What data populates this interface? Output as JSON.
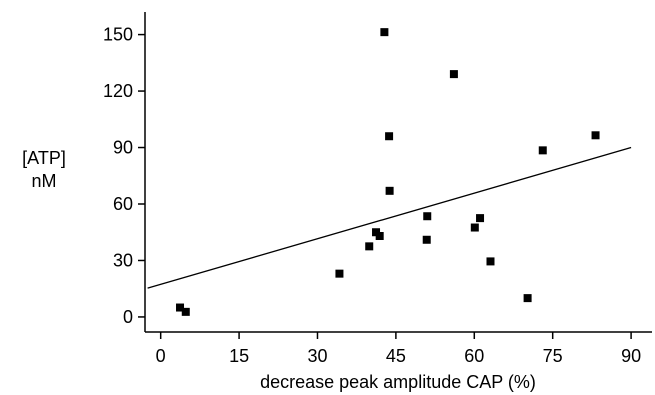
{
  "chart_data": {
    "type": "scatter",
    "title": "",
    "xlabel": "decrease peak amplitude CAP (%)",
    "ylabel": [
      "[ATP]",
      "nM"
    ],
    "xlim": [
      -3,
      94
    ],
    "ylim": [
      -8,
      162
    ],
    "xticks": [
      "0",
      "15",
      "30",
      "45",
      "60",
      "75",
      "90"
    ],
    "yticks": [
      "0",
      "30",
      "60",
      "90",
      "120",
      "150"
    ],
    "grid": false,
    "legend": "none",
    "marker_color": "#000000",
    "series": [
      {
        "points": [
          {
            "x": 3.7,
            "y": 5
          },
          {
            "x": 4.8,
            "y": 2.7
          },
          {
            "x": 34.2,
            "y": 23
          },
          {
            "x": 39.9,
            "y": 37.5
          },
          {
            "x": 41.2,
            "y": 45
          },
          {
            "x": 41.9,
            "y": 43
          },
          {
            "x": 42.8,
            "y": 151.3
          },
          {
            "x": 43.7,
            "y": 96
          },
          {
            "x": 43.8,
            "y": 67
          },
          {
            "x": 50.9,
            "y": 41
          },
          {
            "x": 51.0,
            "y": 53.5
          },
          {
            "x": 56.1,
            "y": 129
          },
          {
            "x": 60.1,
            "y": 47.5
          },
          {
            "x": 61.1,
            "y": 52.5
          },
          {
            "x": 63.1,
            "y": 29.5
          },
          {
            "x": 70.2,
            "y": 10
          },
          {
            "x": 73.1,
            "y": 88.5
          },
          {
            "x": 83.2,
            "y": 96.5
          }
        ]
      }
    ],
    "trendline": {
      "x": [
        -2.5,
        90
      ],
      "y": [
        15.3,
        90
      ]
    }
  }
}
